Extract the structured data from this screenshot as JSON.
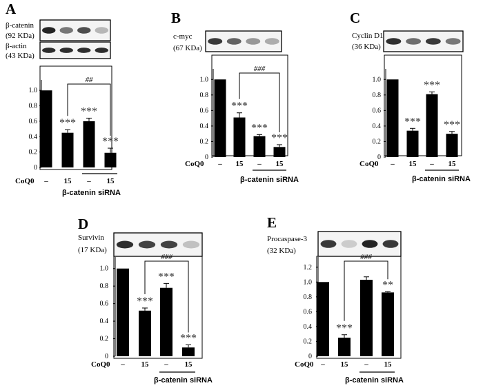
{
  "chart_data": [
    {
      "type": "bar",
      "panel": "A",
      "blots": [
        {
          "name": "β-catenin",
          "size": "(92 KDa)",
          "intensities": [
            0.95,
            0.55,
            0.75,
            0.25
          ]
        },
        {
          "name": "β-actin",
          "size": "(43 KDa)",
          "intensities": [
            0.9,
            0.9,
            0.9,
            0.9
          ]
        }
      ],
      "categories": [
        "CoQ0 –",
        "15",
        "–",
        "15"
      ],
      "values": [
        1.0,
        0.45,
        0.6,
        0.19
      ],
      "errors": [
        0,
        0.04,
        0.04,
        0.06
      ],
      "ylim": [
        0,
        1.1
      ],
      "yticks": [
        "0",
        "0.2",
        "0.4",
        "0.6",
        "0.8",
        "1.0"
      ],
      "xlabels": {
        "treatment": "CoQ0",
        "dash": "–",
        "dose": "15"
      },
      "sirna_label": "β-catenin siRNA",
      "significance": [
        "",
        "***",
        "***",
        "***"
      ],
      "comparison": {
        "from": 1,
        "to": 3,
        "label": "##"
      }
    },
    {
      "type": "bar",
      "panel": "B",
      "blots": [
        {
          "name": "c-myc",
          "size": "(67 KDa)",
          "intensities": [
            0.85,
            0.65,
            0.4,
            0.3
          ]
        }
      ],
      "categories": [
        "CoQ0 –",
        "15",
        "–",
        "15"
      ],
      "values": [
        1.0,
        0.51,
        0.27,
        0.13
      ],
      "errors": [
        0,
        0.06,
        0.02,
        0.03
      ],
      "ylim": [
        0,
        1.1
      ],
      "yticks": [
        "0",
        "0.2",
        "0.4",
        "0.6",
        "0.8",
        "1.0"
      ],
      "xlabels": {
        "treatment": "CoQ0",
        "dash": "–",
        "dose": "15"
      },
      "sirna_label": "β-catenin siRNA",
      "significance": [
        "",
        "***",
        "***",
        "***"
      ],
      "comparison": {
        "from": 1,
        "to": 3,
        "label": "###"
      }
    },
    {
      "type": "bar",
      "panel": "C",
      "blots": [
        {
          "name": "Cyclin D1",
          "size": "(36 KDa)",
          "intensities": [
            0.9,
            0.6,
            0.85,
            0.55
          ]
        }
      ],
      "categories": [
        "CoQ0 –",
        "15",
        "–",
        "15"
      ],
      "values": [
        1.0,
        0.34,
        0.81,
        0.3
      ],
      "errors": [
        0,
        0.03,
        0.03,
        0.03
      ],
      "ylim": [
        0,
        1.1
      ],
      "yticks": [
        "0",
        "0.2",
        "0.4",
        "0.6",
        "0.8",
        "1.0"
      ],
      "xlabels": {
        "treatment": "CoQ0",
        "dash": "–",
        "dose": "15"
      },
      "sirna_label": "β-catenin siRNA",
      "significance": [
        "",
        "***",
        "***",
        "***"
      ],
      "comparison": null
    },
    {
      "type": "bar",
      "panel": "D",
      "blots": [
        {
          "name": "Survivin",
          "size": "(17 KDa)",
          "intensities": [
            0.9,
            0.8,
            0.8,
            0.2
          ]
        }
      ],
      "categories": [
        "CoQ0 –",
        "15",
        "–",
        "15"
      ],
      "values": [
        1.0,
        0.52,
        0.78,
        0.1
      ],
      "errors": [
        0,
        0.03,
        0.05,
        0.03
      ],
      "ylim": [
        0,
        1.1
      ],
      "yticks": [
        "0",
        "0.2",
        "0.4",
        "0.6",
        "0.8",
        "1.0"
      ],
      "xlabels": {
        "treatment": "CoQ0",
        "dash": "–",
        "dose": "15"
      },
      "sirna_label": "β-catenin siRNA",
      "significance": [
        "",
        "***",
        "***",
        "***"
      ],
      "comparison": {
        "from": 1,
        "to": 3,
        "label": "###"
      }
    },
    {
      "type": "bar",
      "panel": "E",
      "blots": [
        {
          "name": "Procaspase-3",
          "size": "(32 KDa)",
          "intensities": [
            0.85,
            0.15,
            0.95,
            0.85
          ]
        }
      ],
      "categories": [
        "CoQ0 –",
        "15",
        "–",
        "15"
      ],
      "values": [
        1.0,
        0.25,
        1.03,
        0.86
      ],
      "errors": [
        0,
        0.04,
        0.04,
        0.01
      ],
      "ylim": [
        0,
        1.3
      ],
      "yticks": [
        "0",
        "0.2",
        "0.4",
        "0.6",
        "0.8",
        "1.0",
        "1.2"
      ],
      "xlabels": {
        "treatment": "CoQ0",
        "dash": "–",
        "dose": "15"
      },
      "sirna_label": "β-catenin siRNA",
      "significance": [
        "",
        "***",
        "",
        "**"
      ],
      "comparison": {
        "from": 1,
        "to": 3,
        "label": "###"
      }
    }
  ]
}
